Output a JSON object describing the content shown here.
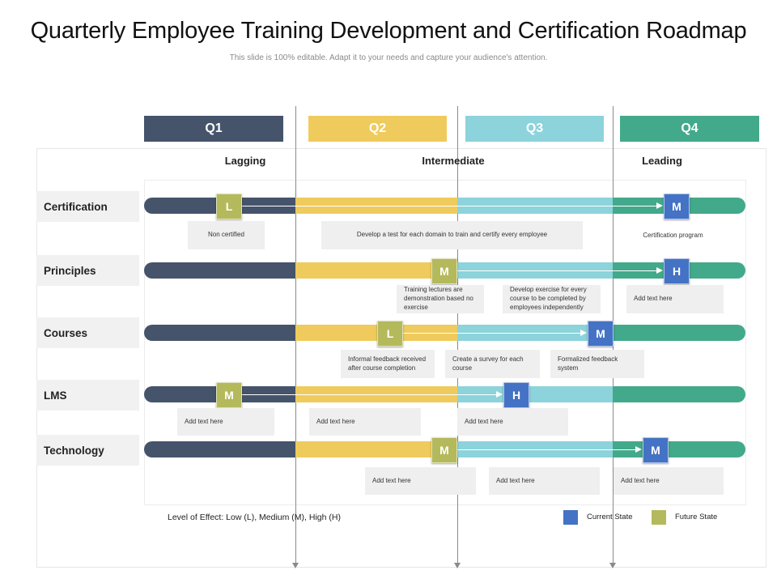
{
  "title": "Quarterly Employee Training Development and Certification Roadmap",
  "subtitle": "This slide is 100% editable. Adapt it to your needs and capture your audience's attention.",
  "colors": {
    "q1": "#45546b",
    "q2": "#efcb5d",
    "q3": "#8cd3db",
    "q4": "#43a98b",
    "current_state": "#4472c4",
    "future_state": "#b4b95c"
  },
  "quarters": [
    "Q1",
    "Q2",
    "Q3",
    "Q4"
  ],
  "phases": [
    "Lagging",
    "Intermediate",
    "Leading"
  ],
  "rows": [
    {
      "label": "Certification",
      "future_marker": "L",
      "current_marker": "M",
      "notes": [
        "Non certified",
        "Develop a test for each domain to train and certify every employee",
        "Certification program"
      ]
    },
    {
      "label": "Principles",
      "future_marker": "M",
      "current_marker": "H",
      "notes": [
        "Training lectures are demonstration based no exercise",
        "Develop exercise for every course to be completed by employees independently",
        "Add text here"
      ]
    },
    {
      "label": "Courses",
      "future_marker": "L",
      "current_marker": "M",
      "notes": [
        "Informal feedback received after course completion",
        "Create a survey for each course",
        "Formalized feedback system"
      ]
    },
    {
      "label": "LMS",
      "future_marker": "M",
      "current_marker": "H",
      "notes": [
        "Add text here",
        "Add text here",
        "Add text here"
      ]
    },
    {
      "label": "Technology",
      "future_marker": "M",
      "current_marker": "M",
      "notes": [
        "Add text here",
        "Add text here",
        "Add text here"
      ]
    }
  ],
  "footnote": "Level of Effect: Low (L), Medium (M), High (H)",
  "legend": {
    "current": "Current State",
    "future": "Future State"
  }
}
